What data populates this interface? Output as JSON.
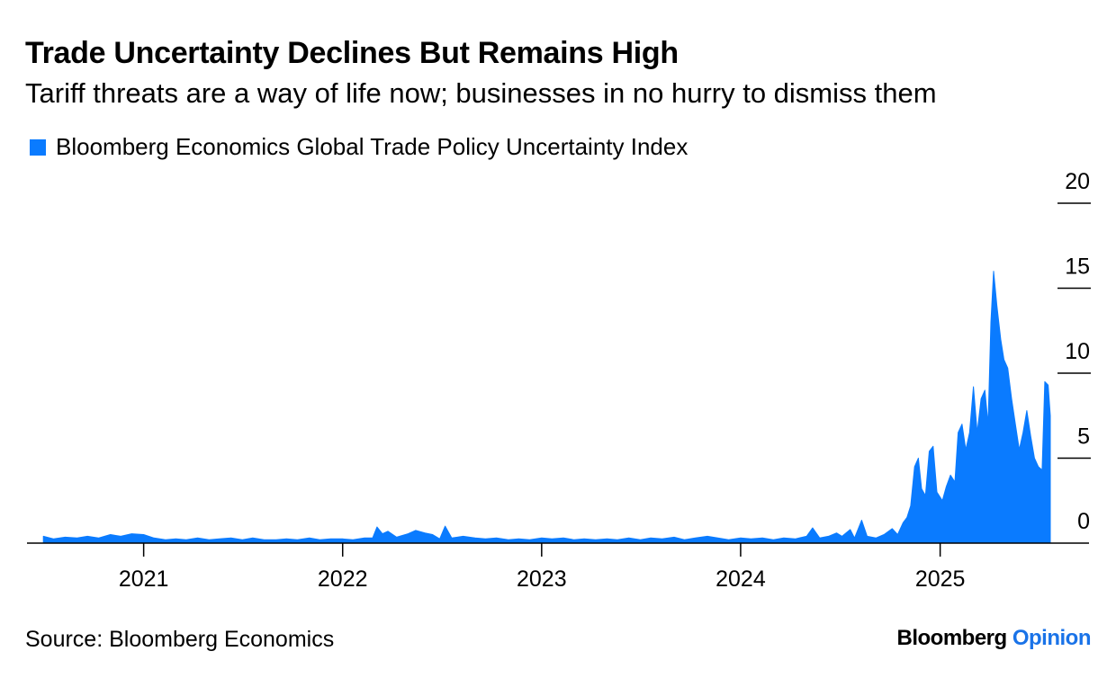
{
  "header": {
    "title": "Trade Uncertainty Declines But Remains High",
    "subtitle": "Tariff threats are a way of life now; businesses in no hurry to dismiss them"
  },
  "footer": {
    "source": "Source: Bloomberg Economics",
    "brand_primary": "Bloomberg",
    "brand_secondary": "Opinion"
  },
  "colors": {
    "series": "#0a7bff",
    "axis": "#000000",
    "brand_accent": "#1a73e8"
  },
  "chart_data": {
    "type": "area",
    "title": "Trade Uncertainty Declines But Remains High",
    "subtitle": "Tariff threats are a way of life now; businesses in no hurry to dismiss them",
    "xlabel": "",
    "ylabel": "",
    "x_ticks": [
      "2021",
      "2022",
      "2023",
      "2024",
      "2025"
    ],
    "y_ticks": [
      0,
      5,
      10,
      15,
      20
    ],
    "ylim": [
      0,
      20
    ],
    "xlim": [
      "2020-06-01",
      "2025-10-01"
    ],
    "y_axis_position": "right",
    "grid": false,
    "legend_position": "top-left",
    "series": [
      {
        "name": "Bloomberg Economics Global Trade Policy Uncertainty Index",
        "color": "#0a7bff",
        "points": [
          [
            "2020-07-01",
            0.4
          ],
          [
            "2020-07-20",
            0.25
          ],
          [
            "2020-08-10",
            0.35
          ],
          [
            "2020-09-01",
            0.3
          ],
          [
            "2020-09-20",
            0.4
          ],
          [
            "2020-10-10",
            0.3
          ],
          [
            "2020-11-01",
            0.5
          ],
          [
            "2020-11-20",
            0.4
          ],
          [
            "2020-12-10",
            0.55
          ],
          [
            "2021-01-01",
            0.5
          ],
          [
            "2021-01-20",
            0.3
          ],
          [
            "2021-02-10",
            0.2
          ],
          [
            "2021-03-01",
            0.25
          ],
          [
            "2021-03-20",
            0.2
          ],
          [
            "2021-04-10",
            0.3
          ],
          [
            "2021-05-01",
            0.2
          ],
          [
            "2021-05-20",
            0.25
          ],
          [
            "2021-06-10",
            0.3
          ],
          [
            "2021-07-01",
            0.2
          ],
          [
            "2021-07-20",
            0.3
          ],
          [
            "2021-08-10",
            0.2
          ],
          [
            "2021-09-01",
            0.2
          ],
          [
            "2021-09-20",
            0.25
          ],
          [
            "2021-10-10",
            0.2
          ],
          [
            "2021-11-01",
            0.3
          ],
          [
            "2021-11-20",
            0.2
          ],
          [
            "2021-12-10",
            0.25
          ],
          [
            "2022-01-01",
            0.25
          ],
          [
            "2022-01-20",
            0.2
          ],
          [
            "2022-02-10",
            0.3
          ],
          [
            "2022-02-25",
            0.3
          ],
          [
            "2022-03-05",
            0.95
          ],
          [
            "2022-03-15",
            0.55
          ],
          [
            "2022-03-25",
            0.7
          ],
          [
            "2022-04-10",
            0.35
          ],
          [
            "2022-05-01",
            0.55
          ],
          [
            "2022-05-15",
            0.75
          ],
          [
            "2022-06-01",
            0.6
          ],
          [
            "2022-06-15",
            0.5
          ],
          [
            "2022-06-28",
            0.25
          ],
          [
            "2022-07-08",
            1.0
          ],
          [
            "2022-07-20",
            0.3
          ],
          [
            "2022-08-10",
            0.4
          ],
          [
            "2022-09-01",
            0.3
          ],
          [
            "2022-09-20",
            0.25
          ],
          [
            "2022-10-10",
            0.3
          ],
          [
            "2022-11-01",
            0.2
          ],
          [
            "2022-11-20",
            0.25
          ],
          [
            "2022-12-10",
            0.2
          ],
          [
            "2023-01-01",
            0.3
          ],
          [
            "2023-01-20",
            0.25
          ],
          [
            "2023-02-10",
            0.3
          ],
          [
            "2023-03-01",
            0.2
          ],
          [
            "2023-03-20",
            0.25
          ],
          [
            "2023-04-10",
            0.2
          ],
          [
            "2023-05-01",
            0.25
          ],
          [
            "2023-05-20",
            0.2
          ],
          [
            "2023-06-10",
            0.3
          ],
          [
            "2023-07-01",
            0.2
          ],
          [
            "2023-07-20",
            0.3
          ],
          [
            "2023-08-10",
            0.25
          ],
          [
            "2023-09-01",
            0.35
          ],
          [
            "2023-09-20",
            0.2
          ],
          [
            "2023-10-10",
            0.3
          ],
          [
            "2023-11-01",
            0.4
          ],
          [
            "2023-11-20",
            0.3
          ],
          [
            "2023-12-10",
            0.2
          ],
          [
            "2024-01-01",
            0.3
          ],
          [
            "2024-01-20",
            0.25
          ],
          [
            "2024-02-10",
            0.3
          ],
          [
            "2024-03-01",
            0.2
          ],
          [
            "2024-03-20",
            0.3
          ],
          [
            "2024-04-10",
            0.25
          ],
          [
            "2024-05-01",
            0.4
          ],
          [
            "2024-05-12",
            0.9
          ],
          [
            "2024-05-25",
            0.3
          ],
          [
            "2024-06-10",
            0.4
          ],
          [
            "2024-06-25",
            0.6
          ],
          [
            "2024-07-05",
            0.4
          ],
          [
            "2024-07-20",
            0.8
          ],
          [
            "2024-07-28",
            0.3
          ],
          [
            "2024-08-10",
            1.35
          ],
          [
            "2024-08-20",
            0.4
          ],
          [
            "2024-09-05",
            0.3
          ],
          [
            "2024-09-20",
            0.5
          ],
          [
            "2024-10-05",
            0.85
          ],
          [
            "2024-10-15",
            0.5
          ],
          [
            "2024-10-25",
            1.2
          ],
          [
            "2024-11-01",
            1.5
          ],
          [
            "2024-11-08",
            2.2
          ],
          [
            "2024-11-15",
            4.5
          ],
          [
            "2024-11-22",
            5.0
          ],
          [
            "2024-11-28",
            3.2
          ],
          [
            "2024-12-05",
            2.8
          ],
          [
            "2024-12-12",
            5.4
          ],
          [
            "2024-12-19",
            5.7
          ],
          [
            "2024-12-26",
            3.0
          ],
          [
            "2025-01-05",
            2.5
          ],
          [
            "2025-01-12",
            3.3
          ],
          [
            "2025-01-20",
            4.0
          ],
          [
            "2025-01-28",
            3.6
          ],
          [
            "2025-02-03",
            6.5
          ],
          [
            "2025-02-10",
            7.0
          ],
          [
            "2025-02-17",
            5.5
          ],
          [
            "2025-02-24",
            6.5
          ],
          [
            "2025-03-03",
            9.2
          ],
          [
            "2025-03-10",
            6.5
          ],
          [
            "2025-03-17",
            8.5
          ],
          [
            "2025-03-24",
            9.0
          ],
          [
            "2025-03-30",
            7.0
          ],
          [
            "2025-04-04",
            13.0
          ],
          [
            "2025-04-09",
            16.0
          ],
          [
            "2025-04-15",
            14.0
          ],
          [
            "2025-04-22",
            12.0
          ],
          [
            "2025-04-28",
            10.8
          ],
          [
            "2025-05-05",
            10.3
          ],
          [
            "2025-05-12",
            8.5
          ],
          [
            "2025-05-19",
            7.0
          ],
          [
            "2025-05-26",
            5.5
          ],
          [
            "2025-06-02",
            6.5
          ],
          [
            "2025-06-09",
            7.8
          ],
          [
            "2025-06-16",
            6.3
          ],
          [
            "2025-06-23",
            5.0
          ],
          [
            "2025-06-30",
            4.5
          ],
          [
            "2025-07-07",
            4.3
          ],
          [
            "2025-07-12",
            9.5
          ],
          [
            "2025-07-18",
            9.3
          ],
          [
            "2025-07-22",
            7.5
          ]
        ]
      }
    ]
  }
}
